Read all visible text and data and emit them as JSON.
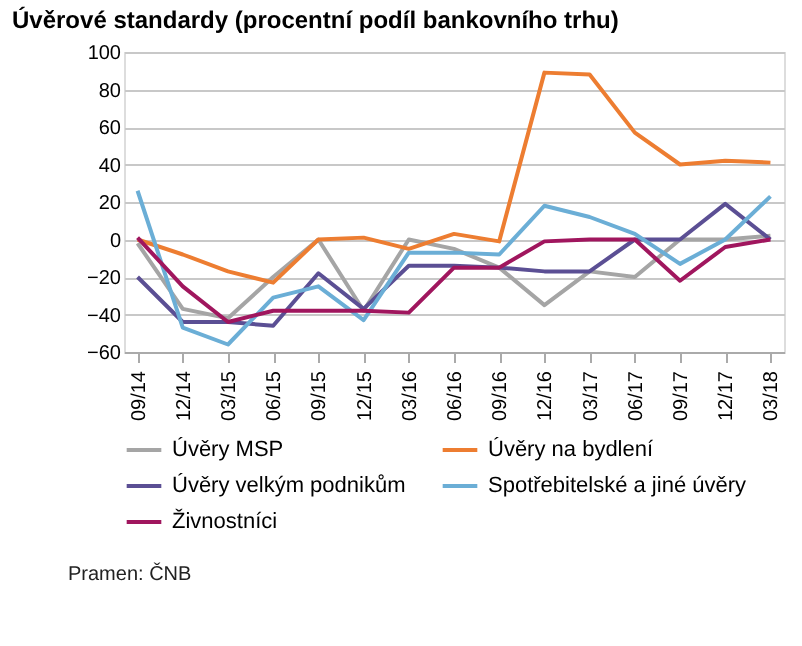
{
  "chart_data": {
    "type": "line",
    "title": "Úvěrové standardy (procentní podíl bankovního trhu)",
    "categories": [
      "09/14",
      "12/14",
      "03/15",
      "06/15",
      "09/15",
      "12/15",
      "03/16",
      "06/16",
      "09/16",
      "12/16",
      "03/17",
      "06/17",
      "09/17",
      "12/17",
      "03/18"
    ],
    "series": [
      {
        "name": "Úvěry MSP",
        "color": "#a5a5a5",
        "values": [
          -2,
          -37,
          -42,
          -20,
          0,
          -38,
          0,
          -5,
          -15,
          -35,
          -17,
          -20,
          0,
          0,
          2
        ]
      },
      {
        "name": "Úvěry na bydlení",
        "color": "#ed7d31",
        "values": [
          0,
          -8,
          -17,
          -23,
          0,
          1,
          -5,
          3,
          -1,
          89,
          88,
          57,
          40,
          42,
          41
        ]
      },
      {
        "name": "Úvěry velkým podnikům",
        "color": "#5b4f94",
        "values": [
          -20,
          -44,
          -44,
          -46,
          -18,
          -37,
          -14,
          -14,
          -15,
          -17,
          -17,
          0,
          0,
          19,
          0
        ]
      },
      {
        "name": "Spotřebitelské a jiné úvěry",
        "color": "#6baed6",
        "values": [
          26,
          -47,
          -56,
          -31,
          -25,
          -43,
          -7,
          -7,
          -8,
          18,
          12,
          3,
          -13,
          0,
          23
        ]
      },
      {
        "name": "Živnostníci",
        "color": "#a0165e",
        "values": [
          1,
          -25,
          -44,
          -38,
          -38,
          -38,
          -39,
          -15,
          -15,
          -1,
          0,
          0,
          -22,
          -4,
          0
        ]
      }
    ],
    "ylim": [
      -60,
      100
    ],
    "yticks": [
      -60,
      -40,
      -20,
      0,
      20,
      40,
      60,
      80,
      100
    ],
    "grid": "y",
    "legend": "bottom",
    "marker": "none",
    "line_style": "solid",
    "annotations": [
      "Pramen: ČNB"
    ]
  }
}
